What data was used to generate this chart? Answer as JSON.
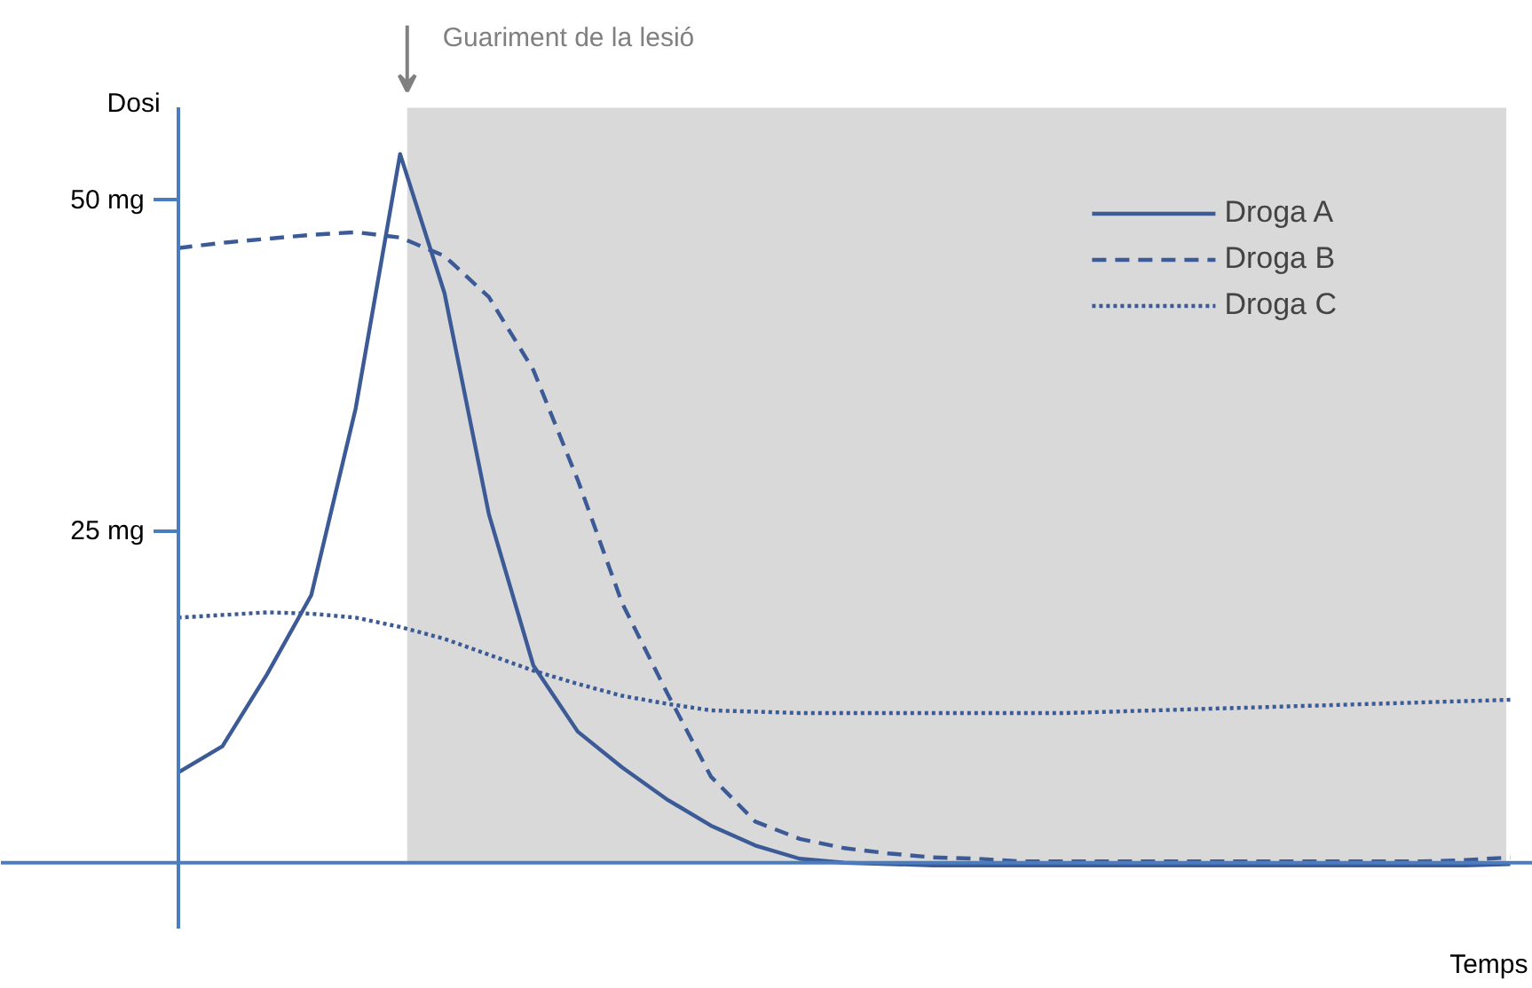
{
  "chart_data": {
    "type": "line",
    "xlabel": "Temps",
    "ylabel": "Dosi",
    "categories": [
      null,
      null,
      null,
      null,
      null,
      null,
      null,
      null,
      null,
      null,
      null,
      null,
      null,
      null,
      null,
      null,
      null,
      null,
      null,
      null,
      null,
      null,
      null,
      null,
      null,
      null,
      null,
      null,
      null,
      null,
      null
    ],
    "ylim": [
      -5,
      57
    ],
    "yticks": [
      {
        "value": 25,
        "label": "25 mg"
      },
      {
        "value": 50,
        "label": "50 mg"
      }
    ],
    "tick_labels": "y",
    "legend": "top right",
    "annotations": [
      "Guariment de la lesió"
    ],
    "ref_lines": [
      {
        "axis": "y",
        "value": 0,
        "color": "#4a7cc0"
      }
    ],
    "series": [
      {
        "name": "Droga A",
        "color": "#3c5a96",
        "line_style": "solid",
        "values": [
          6.8,
          8.8,
          14.2,
          20.2,
          34.3,
          53.5,
          43.0,
          26.3,
          14.9,
          9.9,
          7.2,
          4.8,
          2.8,
          1.3,
          0.3,
          0,
          -0.1,
          -0.2,
          -0.2,
          -0.2,
          -0.2,
          -0.2,
          -0.2,
          -0.2,
          -0.2,
          -0.2,
          -0.2,
          -0.2,
          -0.2,
          -0.2,
          -0.1
        ]
      },
      {
        "name": "Droga B",
        "color": "#3c5a96",
        "line_style": "dashed",
        "values": [
          46.4,
          46.8,
          47.1,
          47.4,
          47.6,
          47.2,
          45.8,
          42.7,
          37.2,
          28.9,
          19.6,
          12.9,
          6.5,
          3.1,
          1.8,
          1.1,
          0.7,
          0.4,
          0.3,
          0.1,
          0.1,
          0.1,
          0.1,
          0.1,
          0.1,
          0.1,
          0.1,
          0.1,
          0.1,
          0.2,
          0.4
        ]
      },
      {
        "name": "Droga C",
        "color": "#3c5a96",
        "line_style": "dotted",
        "values": [
          18.5,
          18.7,
          18.9,
          18.8,
          18.5,
          17.8,
          16.9,
          15.7,
          14.5,
          13.5,
          12.6,
          12.0,
          11.5,
          11.4,
          11.3,
          11.3,
          11.3,
          11.3,
          11.3,
          11.3,
          11.3,
          11.4,
          11.5,
          11.6,
          11.7,
          11.8,
          11.9,
          12.0,
          12.1,
          12.2,
          12.3
        ]
      }
    ]
  }
}
